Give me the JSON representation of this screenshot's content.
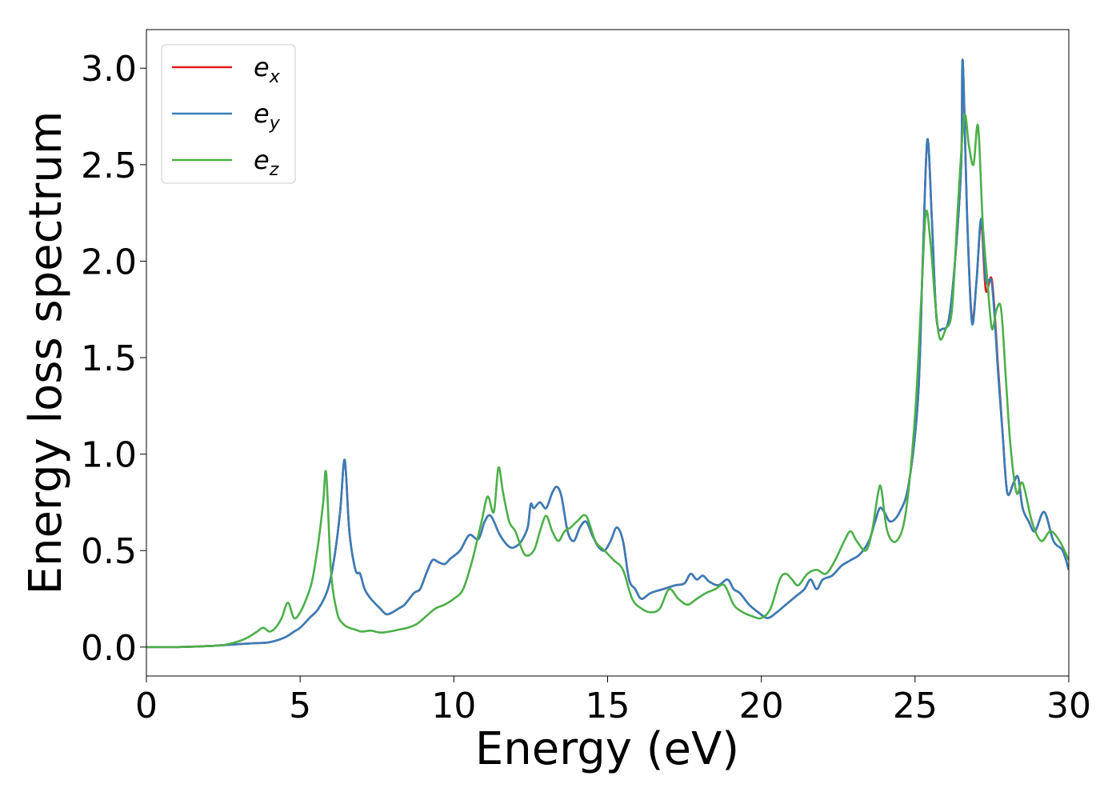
{
  "chart_data": {
    "type": "line",
    "xlabel": "Energy (eV)",
    "ylabel": "Energy loss spectrum",
    "xlim": [
      0,
      30
    ],
    "ylim": [
      -0.15,
      3.2
    ],
    "xticks": [
      0,
      5,
      10,
      15,
      20,
      25,
      30
    ],
    "yticks": [
      0.0,
      0.5,
      1.0,
      1.5,
      2.0,
      2.5,
      3.0
    ],
    "xtick_labels": [
      "0",
      "5",
      "10",
      "15",
      "20",
      "25",
      "30"
    ],
    "ytick_labels": [
      "0.0",
      "0.5",
      "1.0",
      "1.5",
      "2.0",
      "2.5",
      "3.0"
    ],
    "grid": false,
    "legend_position": "top-left",
    "series": [
      {
        "name": "e_x",
        "legend_base": "e",
        "legend_sub": "x",
        "color": "#e41a1c",
        "x": [
          0,
          1,
          2,
          2.5,
          3,
          3.5,
          4,
          4.5,
          4.8,
          5,
          5.3,
          5.6,
          5.9,
          6.1,
          6.3,
          6.45,
          6.6,
          6.8,
          6.95,
          7.1,
          7.3,
          7.6,
          7.8,
          8,
          8.2,
          8.4,
          8.7,
          8.9,
          9.1,
          9.3,
          9.5,
          9.7,
          9.9,
          10.2,
          10.5,
          10.8,
          11,
          11.2,
          11.5,
          11.8,
          12,
          12.2,
          12.4,
          12.5,
          12.6,
          12.8,
          13,
          13.2,
          13.35,
          13.5,
          13.7,
          13.9,
          14.1,
          14.3,
          14.5,
          14.7,
          14.9,
          15.1,
          15.3,
          15.5,
          15.7,
          15.9,
          16.1,
          16.4,
          16.8,
          17.2,
          17.5,
          17.7,
          17.9,
          18.1,
          18.3,
          18.6,
          18.9,
          19.1,
          19.3,
          19.6,
          19.9,
          20.2,
          20.5,
          20.8,
          21.1,
          21.4,
          21.6,
          21.8,
          22,
          22.3,
          22.6,
          22.9,
          23.2,
          23.5,
          23.7,
          23.85,
          24,
          24.2,
          24.5,
          24.8,
          25.1,
          25.25,
          25.4,
          25.55,
          25.7,
          25.9,
          26.1,
          26.3,
          26.5,
          26.55,
          26.7,
          26.85,
          27,
          27.15,
          27.3,
          27.5,
          27.7,
          27.85,
          28,
          28.2,
          28.35,
          28.5,
          28.7,
          28.9,
          29.2,
          29.5,
          29.8,
          30
        ],
        "y": [
          0,
          0,
          0.005,
          0.01,
          0.015,
          0.02,
          0.025,
          0.05,
          0.08,
          0.1,
          0.15,
          0.2,
          0.3,
          0.45,
          0.7,
          0.97,
          0.6,
          0.4,
          0.38,
          0.3,
          0.25,
          0.2,
          0.17,
          0.18,
          0.2,
          0.22,
          0.28,
          0.3,
          0.38,
          0.45,
          0.44,
          0.43,
          0.46,
          0.5,
          0.58,
          0.56,
          0.65,
          0.68,
          0.58,
          0.52,
          0.52,
          0.55,
          0.62,
          0.74,
          0.72,
          0.75,
          0.72,
          0.8,
          0.83,
          0.78,
          0.6,
          0.55,
          0.62,
          0.65,
          0.58,
          0.52,
          0.5,
          0.55,
          0.62,
          0.55,
          0.35,
          0.3,
          0.25,
          0.28,
          0.3,
          0.32,
          0.33,
          0.38,
          0.35,
          0.37,
          0.34,
          0.32,
          0.35,
          0.3,
          0.28,
          0.22,
          0.18,
          0.15,
          0.18,
          0.22,
          0.26,
          0.3,
          0.35,
          0.3,
          0.35,
          0.37,
          0.42,
          0.45,
          0.48,
          0.55,
          0.65,
          0.72,
          0.7,
          0.65,
          0.7,
          0.85,
          1.3,
          2,
          2.63,
          2.2,
          1.7,
          1.65,
          1.7,
          2,
          2.5,
          3.04,
          2.2,
          1.7,
          1.9,
          2.2,
          1.85,
          1.9,
          1.45,
          1.1,
          0.8,
          0.85,
          0.88,
          0.72,
          0.65,
          0.6,
          0.7,
          0.55,
          0.5,
          0.4
        ]
      },
      {
        "name": "e_y",
        "legend_base": "e",
        "legend_sub": "y",
        "color": "#377eb8",
        "x": [
          0,
          1,
          2,
          2.5,
          3,
          3.5,
          4,
          4.5,
          4.8,
          5,
          5.3,
          5.6,
          5.9,
          6.1,
          6.3,
          6.45,
          6.6,
          6.8,
          6.95,
          7.1,
          7.3,
          7.6,
          7.8,
          8,
          8.2,
          8.4,
          8.7,
          8.9,
          9.1,
          9.3,
          9.5,
          9.7,
          9.9,
          10.2,
          10.5,
          10.8,
          11,
          11.2,
          11.5,
          11.8,
          12,
          12.2,
          12.4,
          12.5,
          12.6,
          12.8,
          13,
          13.2,
          13.35,
          13.5,
          13.7,
          13.9,
          14.1,
          14.3,
          14.5,
          14.7,
          14.9,
          15.1,
          15.3,
          15.5,
          15.7,
          15.9,
          16.1,
          16.4,
          16.8,
          17.2,
          17.5,
          17.7,
          17.9,
          18.1,
          18.3,
          18.6,
          18.9,
          19.1,
          19.3,
          19.6,
          19.9,
          20.2,
          20.5,
          20.8,
          21.1,
          21.4,
          21.6,
          21.8,
          22,
          22.3,
          22.6,
          22.9,
          23.2,
          23.5,
          23.7,
          23.85,
          24,
          24.2,
          24.5,
          24.8,
          25.1,
          25.25,
          25.4,
          25.55,
          25.7,
          25.9,
          26.1,
          26.3,
          26.5,
          26.55,
          26.7,
          26.85,
          27,
          27.15,
          27.3,
          27.5,
          27.7,
          27.85,
          28,
          28.2,
          28.35,
          28.5,
          28.7,
          28.9,
          29.2,
          29.5,
          29.8,
          30
        ],
        "y": [
          0,
          0,
          0.005,
          0.01,
          0.015,
          0.02,
          0.025,
          0.05,
          0.08,
          0.1,
          0.15,
          0.2,
          0.3,
          0.45,
          0.7,
          0.97,
          0.6,
          0.4,
          0.38,
          0.3,
          0.25,
          0.2,
          0.17,
          0.18,
          0.2,
          0.22,
          0.28,
          0.3,
          0.38,
          0.45,
          0.44,
          0.43,
          0.46,
          0.5,
          0.58,
          0.56,
          0.65,
          0.68,
          0.58,
          0.52,
          0.52,
          0.55,
          0.62,
          0.74,
          0.72,
          0.75,
          0.72,
          0.8,
          0.83,
          0.78,
          0.6,
          0.55,
          0.62,
          0.65,
          0.58,
          0.52,
          0.5,
          0.55,
          0.62,
          0.55,
          0.35,
          0.3,
          0.25,
          0.28,
          0.3,
          0.32,
          0.33,
          0.38,
          0.35,
          0.37,
          0.34,
          0.32,
          0.35,
          0.3,
          0.28,
          0.22,
          0.18,
          0.15,
          0.18,
          0.22,
          0.26,
          0.3,
          0.35,
          0.3,
          0.35,
          0.37,
          0.42,
          0.45,
          0.48,
          0.55,
          0.65,
          0.72,
          0.7,
          0.65,
          0.7,
          0.85,
          1.3,
          2,
          2.63,
          2.2,
          1.7,
          1.65,
          1.7,
          2,
          2.5,
          3.04,
          2.2,
          1.68,
          1.9,
          2.22,
          1.9,
          1.88,
          1.42,
          1.1,
          0.8,
          0.85,
          0.88,
          0.72,
          0.65,
          0.6,
          0.7,
          0.55,
          0.5,
          0.4
        ]
      },
      {
        "name": "e_z",
        "legend_base": "e",
        "legend_sub": "z",
        "color": "#4daf4a",
        "x": [
          0,
          1,
          2,
          2.5,
          3,
          3.3,
          3.6,
          3.8,
          4,
          4.2,
          4.4,
          4.6,
          4.8,
          5,
          5.2,
          5.4,
          5.6,
          5.75,
          5.85,
          6,
          6.2,
          6.4,
          6.6,
          6.8,
          7,
          7.3,
          7.6,
          7.9,
          8.2,
          8.5,
          8.8,
          9.1,
          9.4,
          9.7,
          10,
          10.3,
          10.6,
          10.9,
          11.1,
          11.3,
          11.45,
          11.6,
          11.8,
          12,
          12.3,
          12.6,
          12.8,
          13,
          13.2,
          13.4,
          13.6,
          13.8,
          14,
          14.3,
          14.6,
          14.9,
          15.2,
          15.5,
          15.8,
          16.1,
          16.4,
          16.7,
          17,
          17.3,
          17.6,
          17.9,
          18.2,
          18.5,
          18.8,
          19.1,
          19.4,
          19.7,
          20,
          20.3,
          20.6,
          20.8,
          21,
          21.2,
          21.5,
          21.8,
          22.1,
          22.4,
          22.7,
          22.9,
          23.1,
          23.4,
          23.6,
          23.8,
          23.9,
          24.1,
          24.4,
          24.7,
          25,
          25.2,
          25.35,
          25.5,
          25.65,
          25.8,
          26,
          26.2,
          26.4,
          26.6,
          26.75,
          26.9,
          27.05,
          27.2,
          27.35,
          27.5,
          27.65,
          27.8,
          27.95,
          28.1,
          28.3,
          28.5,
          28.8,
          29.1,
          29.4,
          29.7,
          30
        ],
        "y": [
          0,
          0,
          0.005,
          0.01,
          0.03,
          0.05,
          0.08,
          0.1,
          0.08,
          0.1,
          0.15,
          0.23,
          0.15,
          0.18,
          0.25,
          0.35,
          0.55,
          0.75,
          0.9,
          0.4,
          0.18,
          0.12,
          0.1,
          0.09,
          0.08,
          0.085,
          0.075,
          0.08,
          0.09,
          0.1,
          0.12,
          0.16,
          0.2,
          0.22,
          0.25,
          0.3,
          0.45,
          0.65,
          0.78,
          0.7,
          0.93,
          0.8,
          0.65,
          0.6,
          0.48,
          0.5,
          0.6,
          0.68,
          0.6,
          0.55,
          0.6,
          0.62,
          0.65,
          0.68,
          0.55,
          0.5,
          0.45,
          0.4,
          0.25,
          0.2,
          0.18,
          0.2,
          0.3,
          0.25,
          0.22,
          0.25,
          0.28,
          0.3,
          0.32,
          0.22,
          0.18,
          0.16,
          0.15,
          0.2,
          0.35,
          0.38,
          0.35,
          0.32,
          0.38,
          0.4,
          0.38,
          0.45,
          0.55,
          0.6,
          0.55,
          0.5,
          0.6,
          0.8,
          0.82,
          0.6,
          0.55,
          0.7,
          1.2,
          1.8,
          2.25,
          2.1,
          1.8,
          1.6,
          1.65,
          1.75,
          2.3,
          2.75,
          2.6,
          2.5,
          2.7,
          2.2,
          1.9,
          1.65,
          1.75,
          1.75,
          1.4,
          1.05,
          0.8,
          0.85,
          0.65,
          0.55,
          0.6,
          0.55,
          0.45
        ]
      }
    ]
  }
}
